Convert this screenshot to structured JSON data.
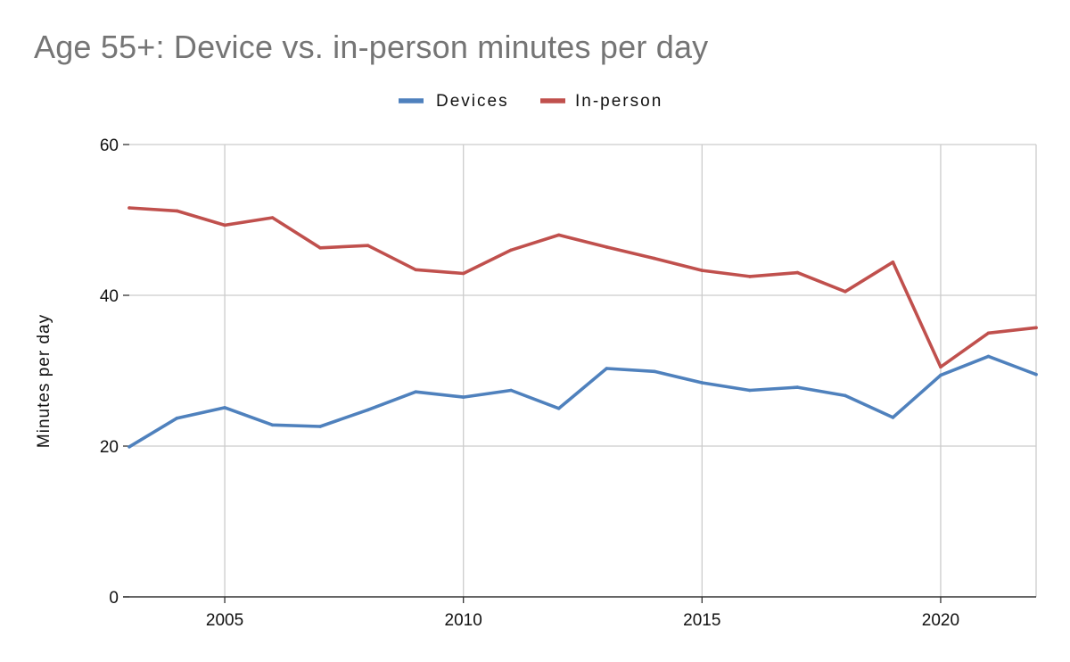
{
  "chart_data": {
    "type": "line",
    "title": "Age 55+: Device vs. in-person minutes per day",
    "xlabel": "",
    "ylabel": "Minutes per day",
    "x": [
      2003,
      2004,
      2005,
      2006,
      2007,
      2008,
      2009,
      2010,
      2011,
      2012,
      2013,
      2014,
      2015,
      2016,
      2017,
      2018,
      2019,
      2020,
      2021,
      2022
    ],
    "xlim": [
      2003,
      2022
    ],
    "ylim": [
      0,
      60
    ],
    "xticks": [
      2005,
      2010,
      2015,
      2020
    ],
    "yticks": [
      0,
      20,
      40,
      60
    ],
    "grid": true,
    "legend_position": "top-center",
    "series": [
      {
        "name": "Devices",
        "color": "#4f81bd",
        "values": [
          19.9,
          23.7,
          25.1,
          22.8,
          22.6,
          24.8,
          27.2,
          26.5,
          27.4,
          25.0,
          30.3,
          29.9,
          28.4,
          27.4,
          27.8,
          26.7,
          23.8,
          29.4,
          31.9,
          29.5
        ]
      },
      {
        "name": "In-person",
        "color": "#c0504d",
        "values": [
          51.6,
          51.2,
          49.3,
          50.3,
          46.3,
          46.6,
          43.4,
          42.9,
          46.0,
          48.0,
          46.4,
          44.9,
          43.3,
          42.5,
          43.0,
          40.5,
          44.4,
          30.5,
          35.0,
          35.7
        ]
      }
    ]
  }
}
